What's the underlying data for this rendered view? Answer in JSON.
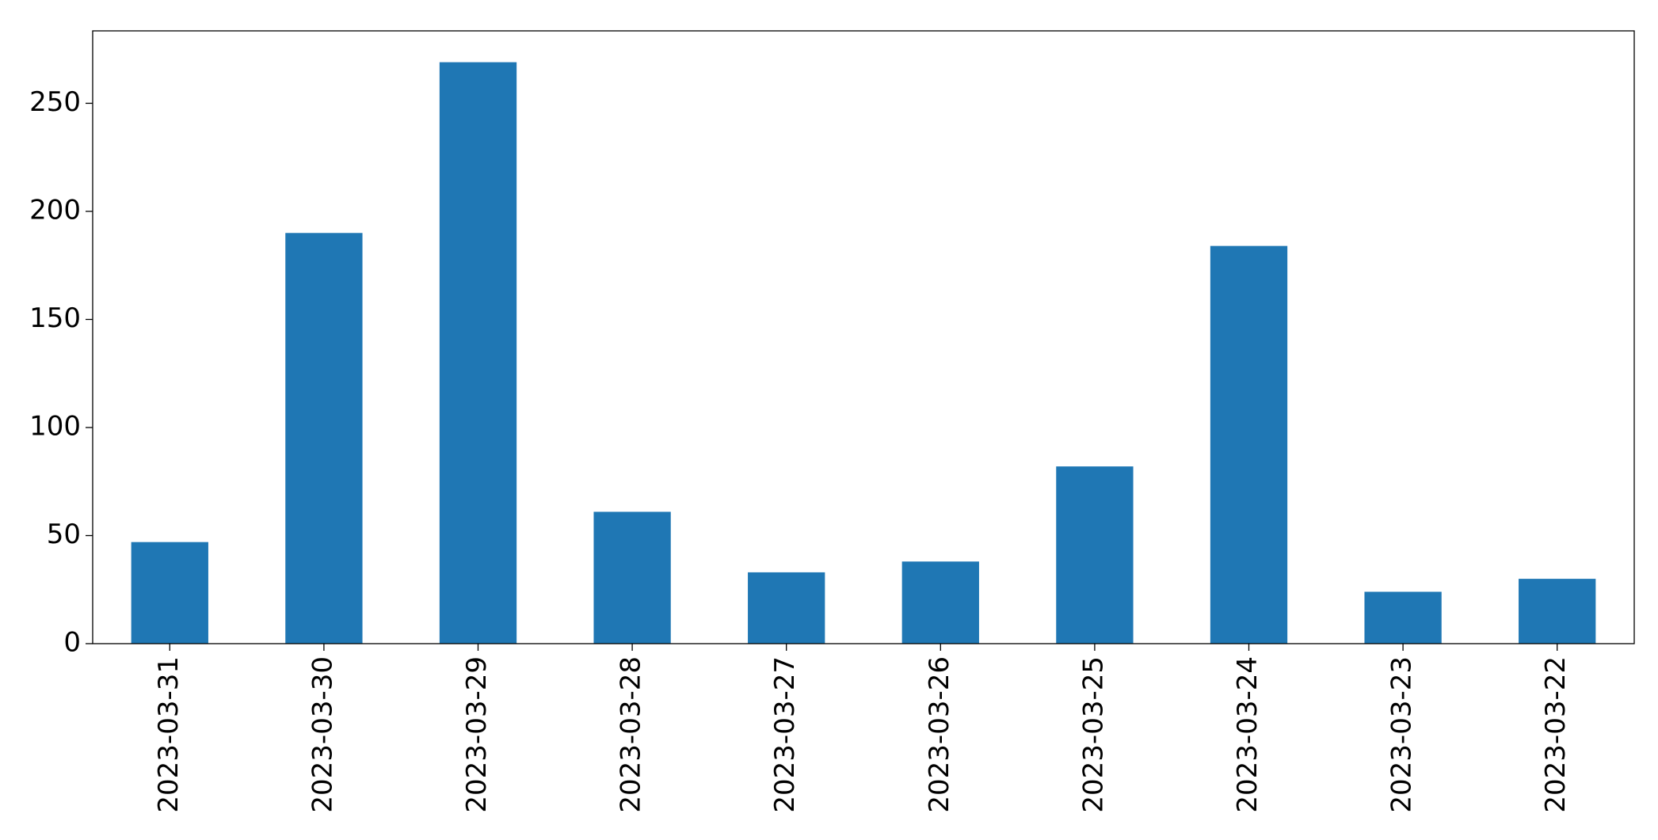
{
  "chart_data": {
    "type": "bar",
    "categories": [
      "2023-03-31",
      "2023-03-30",
      "2023-03-29",
      "2023-03-28",
      "2023-03-27",
      "2023-03-26",
      "2023-03-25",
      "2023-03-24",
      "2023-03-23",
      "2023-03-22"
    ],
    "values": [
      47,
      190,
      269,
      61,
      33,
      38,
      82,
      184,
      24,
      30
    ],
    "color": "#1f77b4",
    "ylim": [
      0,
      283.5
    ],
    "yticks": [
      0,
      50,
      100,
      150,
      200,
      250
    ],
    "grid": false
  }
}
